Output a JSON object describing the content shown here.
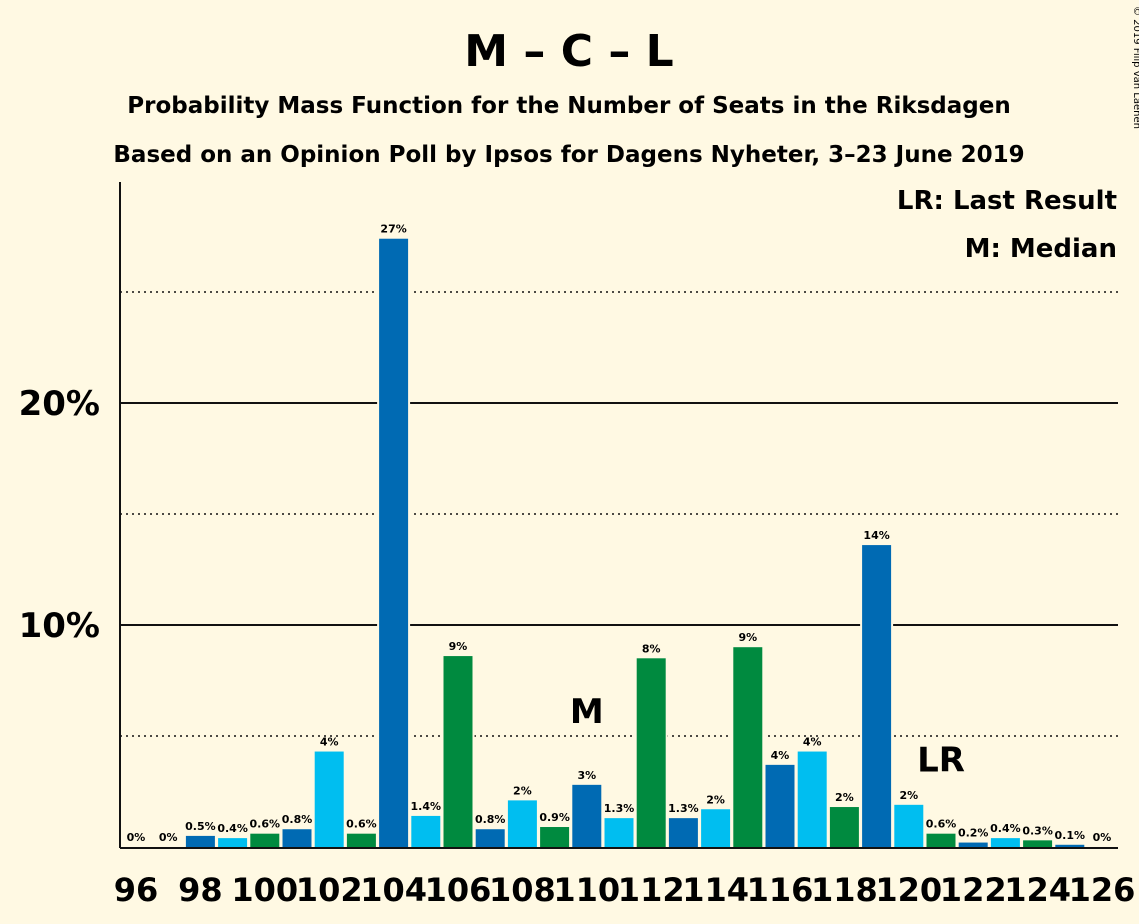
{
  "colors": {
    "background": "#FFF9E3",
    "blue_dark": "#006AB3",
    "blue_light": "#00BEF0",
    "green": "#008A3F",
    "text": "#111111"
  },
  "chart_data": {
    "type": "bar",
    "title": "M – C – L",
    "subtitle": "Probability Mass Function for the Number of Seats in the Riksdagen",
    "subtitle2": "Based on an Opinion Poll by Ipsos for Dagens Nyheter, 3–23 June 2019",
    "copyright": "© 2019 Filip van Laenen",
    "legend": [
      "LR: Last Result",
      "M: Median"
    ],
    "legend_position": "top-right",
    "xlabel": "",
    "ylabel": "",
    "ylim": [
      0,
      30
    ],
    "y_ticks": [
      {
        "value": 10,
        "label": "10%"
      },
      {
        "value": 20,
        "label": "20%"
      }
    ],
    "grid_solid": [
      10,
      20
    ],
    "grid_dotted": [
      5,
      15,
      25
    ],
    "x_tick_labels": [
      "96",
      "98",
      "100",
      "102",
      "104",
      "106",
      "108",
      "110",
      "112",
      "114",
      "116",
      "118",
      "120",
      "122",
      "124",
      "126"
    ],
    "bars": [
      {
        "seats": 96,
        "value": 0,
        "label": "0%",
        "color": "#006AB3"
      },
      {
        "seats": 97,
        "value": 0,
        "label": "0%",
        "color": "#00BEF0"
      },
      {
        "seats": 98,
        "value": 0.5,
        "label": "0.5%",
        "color": "#006AB3"
      },
      {
        "seats": 99,
        "value": 0.4,
        "label": "0.4%",
        "color": "#00BEF0"
      },
      {
        "seats": 100,
        "value": 0.6,
        "label": "0.6%",
        "color": "#008A3F"
      },
      {
        "seats": 101,
        "value": 0.8,
        "label": "0.8%",
        "color": "#006AB3"
      },
      {
        "seats": 102,
        "value": 4.3,
        "label": "4%",
        "color": "#00BEF0"
      },
      {
        "seats": 103,
        "value": 0.6,
        "label": "0.6%",
        "color": "#008A3F"
      },
      {
        "seats": 104,
        "value": 27.4,
        "label": "27%",
        "color": "#006AB3"
      },
      {
        "seats": 105,
        "value": 1.4,
        "label": "1.4%",
        "color": "#00BEF0"
      },
      {
        "seats": 106,
        "value": 8.6,
        "label": "9%",
        "color": "#008A3F"
      },
      {
        "seats": 107,
        "value": 0.8,
        "label": "0.8%",
        "color": "#006AB3"
      },
      {
        "seats": 108,
        "value": 2.1,
        "label": "2%",
        "color": "#00BEF0"
      },
      {
        "seats": 109,
        "value": 0.9,
        "label": "0.9%",
        "color": "#008A3F"
      },
      {
        "seats": 110,
        "value": 2.8,
        "label": "3%",
        "color": "#006AB3"
      },
      {
        "seats": 111,
        "value": 1.3,
        "label": "1.3%",
        "color": "#00BEF0"
      },
      {
        "seats": 112,
        "value": 8.5,
        "label": "8%",
        "color": "#008A3F"
      },
      {
        "seats": 113,
        "value": 1.3,
        "label": "1.3%",
        "color": "#006AB3"
      },
      {
        "seats": 114,
        "value": 1.7,
        "label": "2%",
        "color": "#00BEF0"
      },
      {
        "seats": 115,
        "value": 9.0,
        "label": "9%",
        "color": "#008A3F"
      },
      {
        "seats": 116,
        "value": 3.7,
        "label": "4%",
        "color": "#006AB3"
      },
      {
        "seats": 117,
        "value": 4.3,
        "label": "4%",
        "color": "#00BEF0"
      },
      {
        "seats": 118,
        "value": 1.8,
        "label": "2%",
        "color": "#008A3F"
      },
      {
        "seats": 119,
        "value": 13.6,
        "label": "14%",
        "color": "#006AB3"
      },
      {
        "seats": 120,
        "value": 1.9,
        "label": "2%",
        "color": "#00BEF0"
      },
      {
        "seats": 121,
        "value": 0.6,
        "label": "0.6%",
        "color": "#008A3F"
      },
      {
        "seats": 122,
        "value": 0.2,
        "label": "0.2%",
        "color": "#006AB3"
      },
      {
        "seats": 123,
        "value": 0.4,
        "label": "0.4%",
        "color": "#00BEF0"
      },
      {
        "seats": 124,
        "value": 0.3,
        "label": "0.3%",
        "color": "#008A3F"
      },
      {
        "seats": 125,
        "value": 0.1,
        "label": "0.1%",
        "color": "#006AB3"
      },
      {
        "seats": 126,
        "value": 0,
        "label": "0%",
        "color": "#00BEF0"
      }
    ],
    "markers": [
      {
        "text": "M",
        "seats": 110
      },
      {
        "text": "LR",
        "seats": 121
      }
    ]
  }
}
